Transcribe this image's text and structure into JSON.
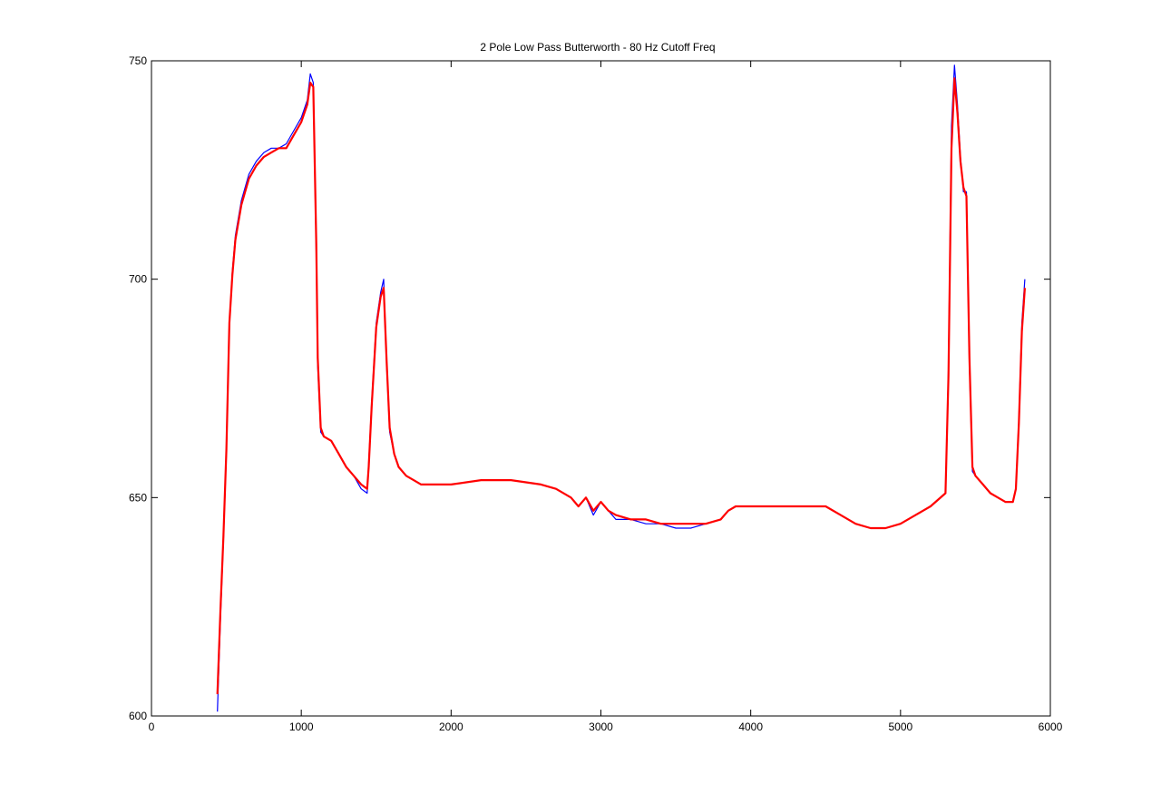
{
  "chart_data": {
    "type": "line",
    "title": "2 Pole Low Pass Butterworth - 80 Hz Cutoff Freq",
    "xlabel": "",
    "ylabel": "",
    "xlim": [
      0,
      6000
    ],
    "ylim": [
      600,
      750
    ],
    "xticks": [
      0,
      1000,
      2000,
      3000,
      4000,
      5000,
      6000
    ],
    "yticks": [
      600,
      650,
      700,
      750
    ],
    "xtick_labels": [
      "0",
      "1000",
      "2000",
      "3000",
      "4000",
      "5000",
      "6000"
    ],
    "ytick_labels": [
      "600",
      "650",
      "700",
      "750"
    ],
    "grid": false,
    "legend": "none",
    "series": [
      {
        "color": "#0000ff",
        "role": "raw signal",
        "x": [
          440,
          460,
          480,
          500,
          520,
          540,
          560,
          600,
          650,
          700,
          750,
          800,
          850,
          900,
          950,
          1000,
          1040,
          1060,
          1080,
          1100,
          1110,
          1130,
          1150,
          1200,
          1250,
          1300,
          1350,
          1400,
          1440,
          1450,
          1470,
          1500,
          1530,
          1550,
          1570,
          1590,
          1620,
          1650,
          1700,
          1750,
          1800,
          2000,
          2200,
          2400,
          2600,
          2700,
          2800,
          2850,
          2900,
          2950,
          3000,
          3050,
          3100,
          3200,
          3300,
          3400,
          3500,
          3600,
          3700,
          3800,
          3850,
          3900,
          4000,
          4200,
          4400,
          4500,
          4600,
          4700,
          4800,
          4900,
          5000,
          5100,
          5200,
          5300,
          5320,
          5340,
          5360,
          5380,
          5400,
          5420,
          5440,
          5460,
          5480,
          5500,
          5550,
          5600,
          5650,
          5700,
          5750,
          5770,
          5790,
          5810,
          5830
        ],
        "y": [
          601,
          622,
          640,
          660,
          690,
          702,
          710,
          718,
          724,
          727,
          729,
          730,
          730,
          731,
          734,
          737,
          741,
          747,
          745,
          705,
          680,
          665,
          664,
          663,
          660,
          657,
          655,
          652,
          651,
          658,
          672,
          690,
          697,
          700,
          680,
          665,
          660,
          657,
          655,
          654,
          653,
          653,
          654,
          654,
          653,
          652,
          650,
          648,
          650,
          646,
          649,
          647,
          645,
          645,
          644,
          644,
          643,
          643,
          644,
          645,
          647,
          648,
          648,
          648,
          648,
          648,
          646,
          644,
          643,
          643,
          644,
          646,
          648,
          651,
          680,
          735,
          749,
          740,
          728,
          720,
          720,
          680,
          656,
          655,
          653,
          651,
          650,
          649,
          649,
          652,
          668,
          690,
          700
        ]
      },
      {
        "color": "#ff0000",
        "role": "filtered signal",
        "x": [
          440,
          460,
          480,
          500,
          520,
          540,
          560,
          600,
          650,
          700,
          750,
          800,
          850,
          900,
          950,
          1000,
          1040,
          1060,
          1080,
          1100,
          1110,
          1130,
          1150,
          1200,
          1250,
          1300,
          1350,
          1400,
          1440,
          1450,
          1470,
          1500,
          1530,
          1550,
          1570,
          1590,
          1620,
          1650,
          1700,
          1750,
          1800,
          2000,
          2200,
          2400,
          2600,
          2700,
          2800,
          2850,
          2900,
          2950,
          3000,
          3050,
          3100,
          3200,
          3300,
          3400,
          3500,
          3600,
          3700,
          3800,
          3850,
          3900,
          4000,
          4200,
          4400,
          4500,
          4600,
          4700,
          4800,
          4900,
          5000,
          5100,
          5200,
          5300,
          5320,
          5340,
          5360,
          5380,
          5400,
          5420,
          5440,
          5460,
          5480,
          5500,
          5550,
          5600,
          5650,
          5700,
          5750,
          5770,
          5790,
          5810,
          5830
        ],
        "y": [
          605,
          624,
          641,
          661,
          690,
          701,
          709,
          717,
          723,
          726,
          728,
          729,
          730,
          730,
          733,
          736,
          740,
          745,
          744,
          708,
          682,
          666,
          664,
          663,
          660,
          657,
          655,
          653,
          652,
          657,
          671,
          689,
          696,
          698,
          681,
          666,
          660,
          657,
          655,
          654,
          653,
          653,
          654,
          654,
          653,
          652,
          650,
          648,
          650,
          647,
          649,
          647,
          646,
          645,
          645,
          644,
          644,
          644,
          644,
          645,
          647,
          648,
          648,
          648,
          648,
          648,
          646,
          644,
          643,
          643,
          644,
          646,
          648,
          651,
          678,
          730,
          746,
          738,
          727,
          721,
          719,
          682,
          657,
          655,
          653,
          651,
          650,
          649,
          649,
          652,
          667,
          688,
          698
        ]
      }
    ]
  }
}
